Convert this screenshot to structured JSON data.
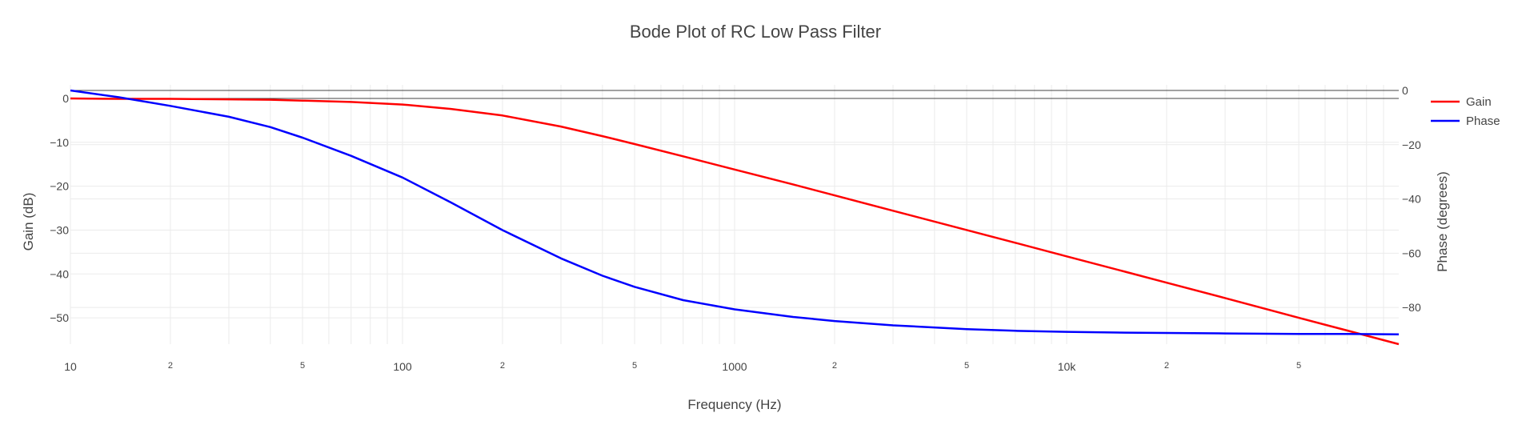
{
  "chart_data": {
    "type": "line",
    "title": "Bode Plot of RC Low Pass Filter",
    "xlabel": "Frequency (Hz)",
    "ylabel": "Gain (dB)",
    "y2label": "Phase (degrees)",
    "x_scale": "log",
    "xlim": [
      10,
      100000
    ],
    "ylim": [
      -56,
      2
    ],
    "y2lim": [
      -90,
      0
    ],
    "x_tick_labels": [
      {
        "v": 10,
        "t": "10",
        "major": true
      },
      {
        "v": 20,
        "t": "2",
        "major": false
      },
      {
        "v": 50,
        "t": "5",
        "major": false
      },
      {
        "v": 100,
        "t": "100",
        "major": true
      },
      {
        "v": 200,
        "t": "2",
        "major": false
      },
      {
        "v": 500,
        "t": "5",
        "major": false
      },
      {
        "v": 1000,
        "t": "1000",
        "major": true
      },
      {
        "v": 2000,
        "t": "2",
        "major": false
      },
      {
        "v": 5000,
        "t": "5",
        "major": false
      },
      {
        "v": 10000,
        "t": "10k",
        "major": true
      },
      {
        "v": 20000,
        "t": "2",
        "major": false
      },
      {
        "v": 50000,
        "t": "5",
        "major": false
      }
    ],
    "y_ticks": [
      0,
      -10,
      -20,
      -30,
      -40,
      -50
    ],
    "y_tick_labels": [
      "0",
      "−10",
      "−20",
      "−30",
      "−40",
      "−50"
    ],
    "y2_ticks": [
      0,
      -20,
      -40,
      -60,
      -80
    ],
    "y2_tick_labels": [
      "0",
      "−20",
      "−40",
      "−60",
      "−80"
    ],
    "grid": true,
    "legend_position": "top-right",
    "series": [
      {
        "name": "Gain",
        "color": "#ff0000",
        "axis": "y",
        "x": [
          10,
          14,
          20,
          30,
          40,
          50,
          70,
          100,
          140,
          200,
          300,
          400,
          500,
          700,
          1000,
          1500,
          2000,
          3000,
          5000,
          7000,
          10000,
          15000,
          20000,
          30000,
          50000,
          70000,
          100000
        ],
        "y": [
          0,
          -0.1,
          -0.1,
          -0.2,
          -0.3,
          -0.5,
          -0.8,
          -1.4,
          -2.4,
          -3.9,
          -6.4,
          -8.6,
          -10.4,
          -13.2,
          -16.2,
          -19.6,
          -22.1,
          -25.6,
          -30.0,
          -32.9,
          -36.0,
          -39.5,
          -42.0,
          -45.5,
          -50.0,
          -52.9,
          -56.0
        ]
      },
      {
        "name": "Phase",
        "color": "#0000ff",
        "axis": "y2",
        "x": [
          10,
          14,
          20,
          30,
          40,
          50,
          70,
          100,
          140,
          200,
          300,
          400,
          500,
          700,
          1000,
          1500,
          2000,
          3000,
          5000,
          7000,
          10000,
          15000,
          20000,
          30000,
          50000,
          70000,
          100000
        ],
        "y": [
          0,
          -2.5,
          -5.7,
          -9.7,
          -13.5,
          -17.4,
          -24.1,
          -32.1,
          -41.3,
          -51.5,
          -61.9,
          -68.3,
          -72.4,
          -77.3,
          -80.7,
          -83.5,
          -85.0,
          -86.6,
          -88.0,
          -88.6,
          -89.0,
          -89.3,
          -89.4,
          -89.6,
          -89.8,
          -89.8,
          -89.9
        ]
      }
    ]
  }
}
